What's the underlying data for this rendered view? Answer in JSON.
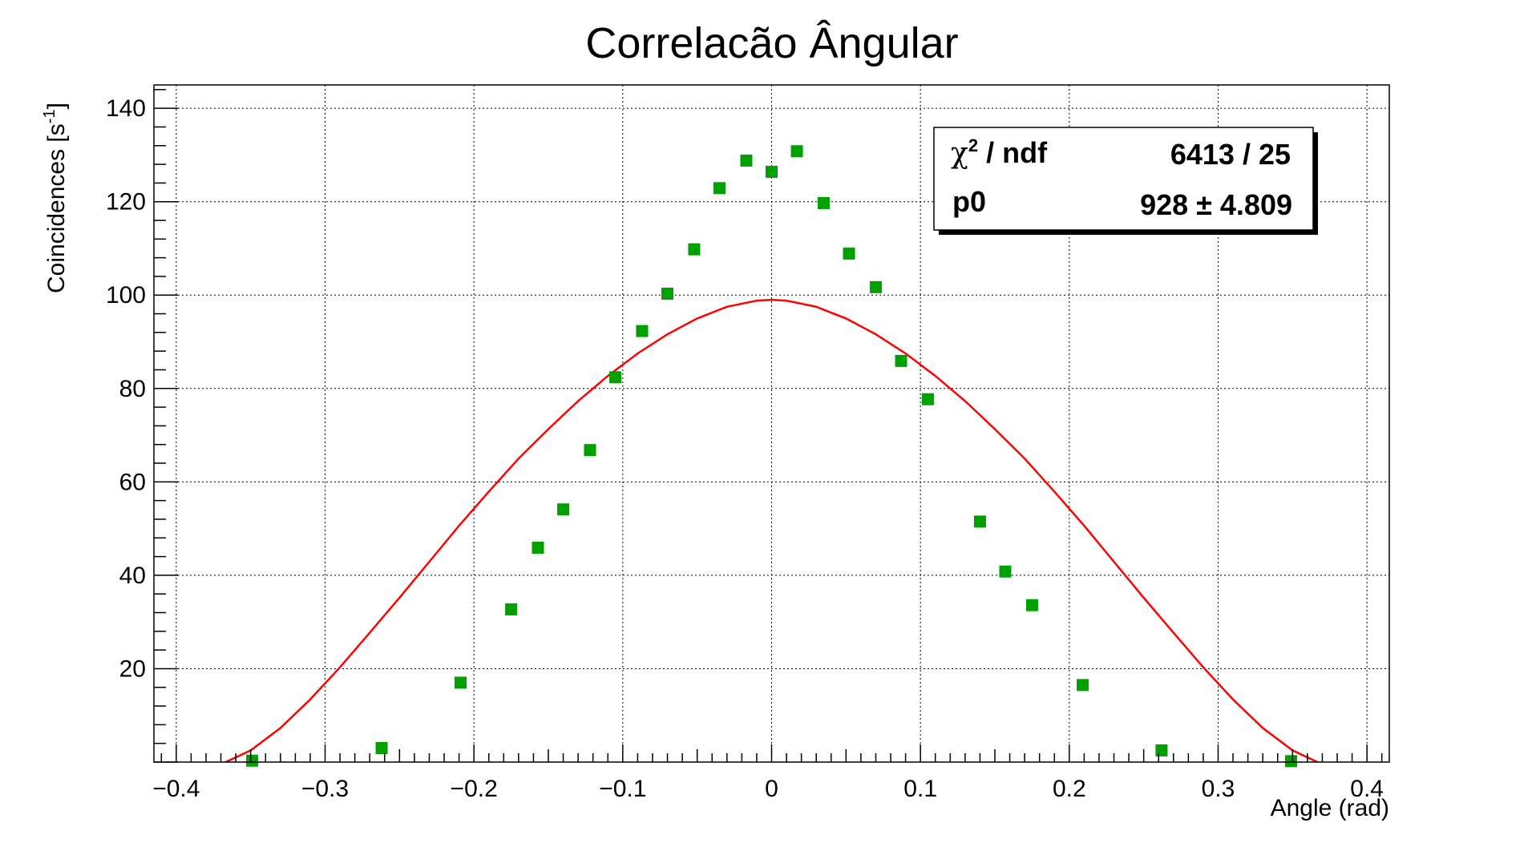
{
  "chart_data": {
    "type": "scatter",
    "title": "Correlacão Ângular",
    "xlabel": "Angle (rad)",
    "ylabel_main": "Coincidences [s",
    "ylabel_sup": "-1",
    "ylabel_tail": "]",
    "xlim": [
      -0.415,
      0.415
    ],
    "ylim": [
      0,
      145
    ],
    "xticks": [
      -0.4,
      -0.3,
      -0.2,
      -0.1,
      0,
      0.1,
      0.2,
      0.3,
      0.4
    ],
    "xtick_labels": [
      "−0.4",
      "−0.3",
      "−0.2",
      "−0.1",
      "0",
      "0.1",
      "0.2",
      "0.3",
      "0.4"
    ],
    "yticks": [
      20,
      40,
      60,
      80,
      100,
      120,
      140
    ],
    "ytick_labels": [
      "20",
      "40",
      "60",
      "80",
      "100",
      "120",
      "140"
    ],
    "grid": true,
    "colors": {
      "points": "#00a000",
      "fit": "#ff0000",
      "errorbars": "#000080"
    },
    "series": [
      {
        "type": "scatter",
        "x": [
          -0.349,
          -0.262,
          -0.209,
          -0.175,
          -0.157,
          -0.14,
          -0.122,
          -0.105,
          -0.087,
          -0.07,
          -0.052,
          -0.035,
          -0.017,
          0.0,
          0.017,
          0.035,
          0.052,
          0.07,
          0.087,
          0.105,
          0.14,
          0.157,
          0.175,
          0.209,
          0.262,
          0.349
        ],
        "y": [
          0.3,
          3.0,
          17.0,
          32.7,
          45.9,
          54.1,
          66.8,
          82.4,
          92.3,
          100.3,
          109.8,
          122.9,
          128.8,
          126.4,
          130.8,
          119.7,
          108.9,
          101.7,
          85.9,
          77.7,
          51.5,
          40.8,
          33.6,
          16.5,
          2.5,
          0.2
        ],
        "yerr": [
          0.3,
          0.4,
          0.5,
          0.6,
          0.7,
          0.7,
          0.8,
          0.9,
          1.0,
          1.0,
          1.0,
          1.1,
          1.1,
          1.1,
          1.1,
          1.1,
          1.0,
          1.0,
          0.9,
          0.9,
          0.7,
          0.6,
          0.6,
          0.4,
          0.3,
          0.2
        ]
      },
      {
        "type": "line",
        "x": [
          -0.37,
          -0.35,
          -0.33,
          -0.31,
          -0.29,
          -0.27,
          -0.25,
          -0.23,
          -0.21,
          -0.19,
          -0.17,
          -0.15,
          -0.13,
          -0.11,
          -0.09,
          -0.07,
          -0.05,
          -0.03,
          -0.01,
          0.0,
          0.01,
          0.03,
          0.05,
          0.07,
          0.09,
          0.11,
          0.13,
          0.15,
          0.17,
          0.19,
          0.21,
          0.23,
          0.25,
          0.27,
          0.29,
          0.31,
          0.33,
          0.35,
          0.37
        ],
        "y": [
          -0.5,
          2.5,
          7.3,
          13.4,
          20.3,
          27.7,
          35.2,
          42.9,
          50.6,
          57.9,
          65.0,
          71.3,
          77.3,
          82.7,
          87.5,
          91.6,
          95.0,
          97.5,
          98.8,
          99.0,
          98.8,
          97.5,
          95.0,
          91.6,
          87.5,
          82.7,
          77.3,
          71.3,
          65.0,
          57.9,
          50.6,
          42.9,
          35.2,
          27.7,
          20.3,
          13.4,
          7.3,
          2.5,
          -0.5
        ]
      }
    ],
    "stats_box": {
      "row1_label": "χ",
      "row1_label_sup": "2",
      "row1_label_tail": " / ndf",
      "row1_value": "6413 / 25",
      "row2_label": "p0",
      "row2_value": "928 ± 4.809"
    }
  }
}
